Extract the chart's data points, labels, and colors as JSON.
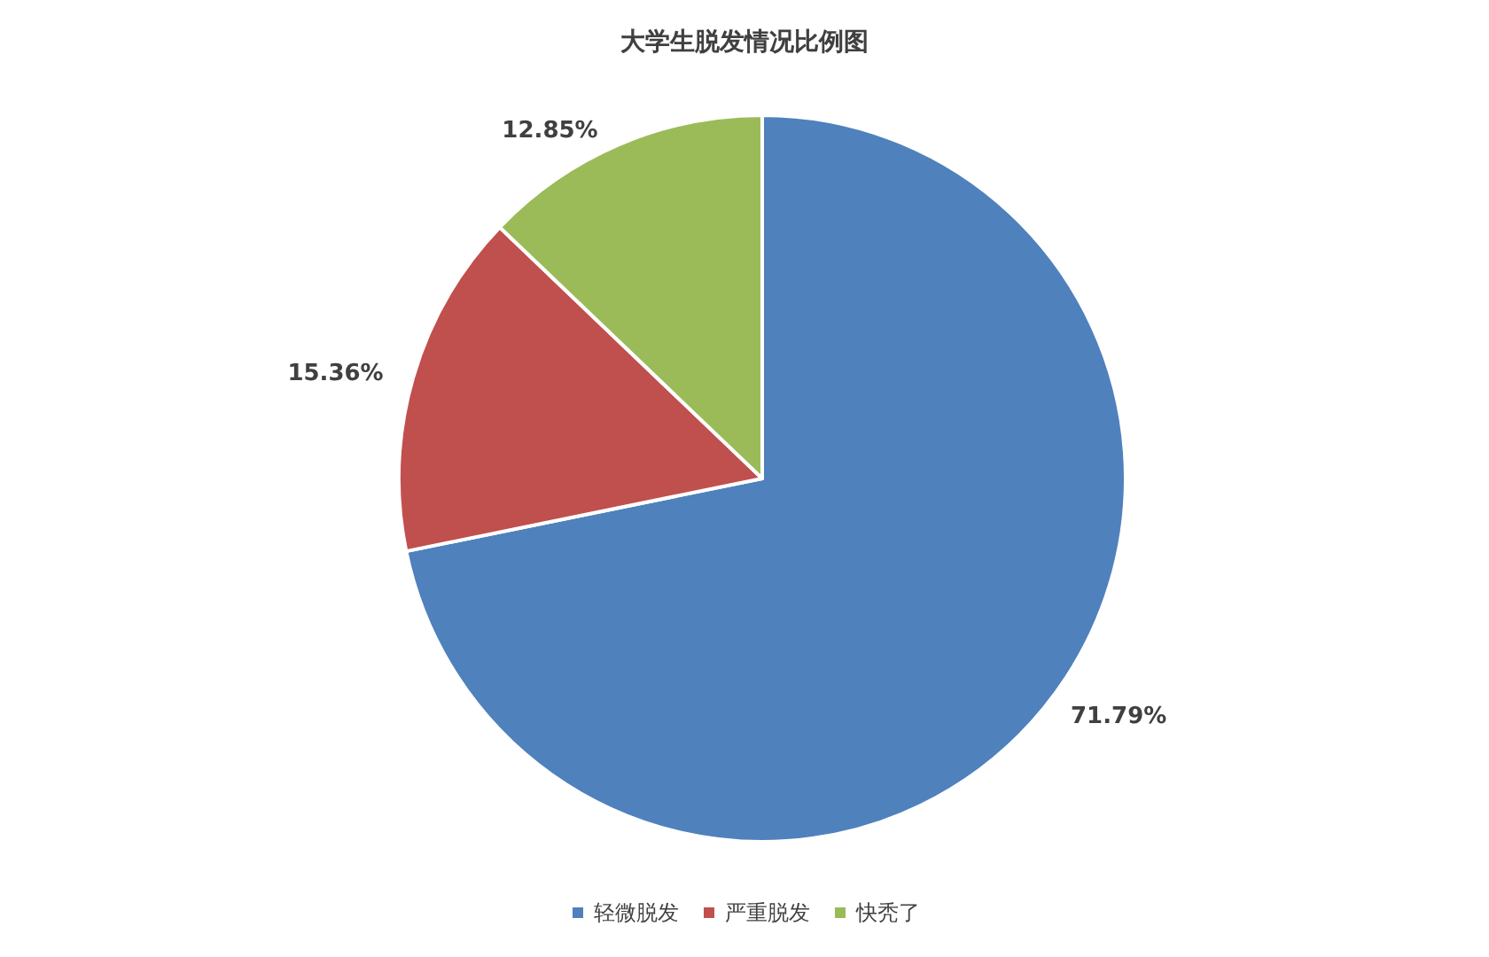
{
  "chart_data": {
    "type": "pie",
    "title": "大学生脱发情况比例图",
    "categories": [
      "轻微脱发",
      "严重脱发",
      "快秃了"
    ],
    "values": [
      71.79,
      15.36,
      12.85
    ],
    "colors": [
      "#4f81bd",
      "#c0504d",
      "#9bbb59"
    ],
    "value_labels": [
      "71.79%",
      "15.36%",
      "12.85%"
    ],
    "legend": "bottom"
  }
}
